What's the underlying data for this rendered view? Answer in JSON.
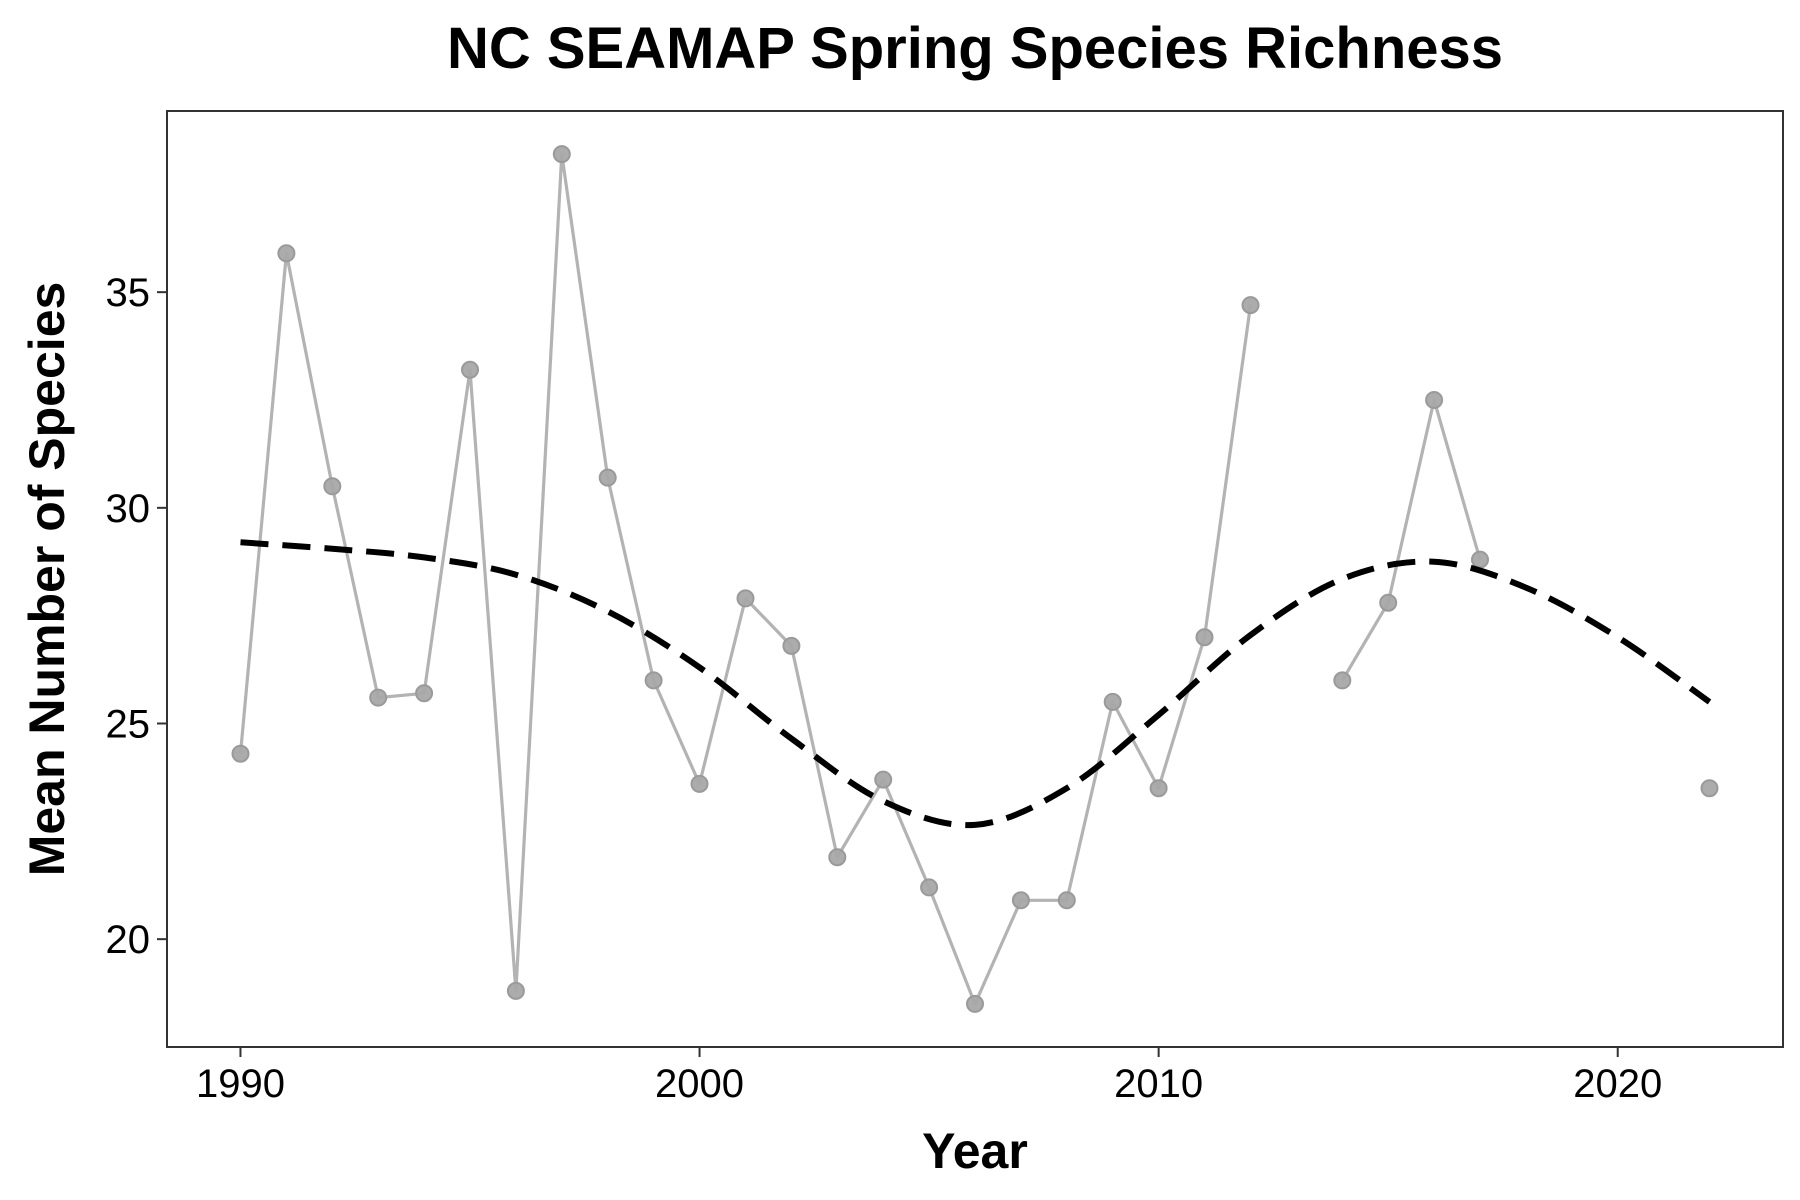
{
  "chart_data": {
    "type": "line",
    "title": "NC SEAMAP Spring Species Richness",
    "xlabel": "Year",
    "ylabel": "Mean Number of Species",
    "xlim": [
      1988.4,
      2023.6
    ],
    "ylim": [
      17.5,
      39.2
    ],
    "x_ticks": [
      1990,
      2000,
      2010,
      2020
    ],
    "y_ticks": [
      20,
      25,
      30,
      35
    ],
    "grid": false,
    "legend": "none",
    "colors": {
      "observed": "#b3b3b3",
      "smooth": "#000000",
      "frame": "#333333"
    },
    "series": [
      {
        "style": "line-points",
        "segments": [
          [
            {
              "x": 1990,
              "y": 24.3
            },
            {
              "x": 1991,
              "y": 35.9
            },
            {
              "x": 1992,
              "y": 30.5
            },
            {
              "x": 1993,
              "y": 25.6
            },
            {
              "x": 1994,
              "y": 25.7
            },
            {
              "x": 1995,
              "y": 33.2
            },
            {
              "x": 1996,
              "y": 18.8
            },
            {
              "x": 1997,
              "y": 38.2
            },
            {
              "x": 1998,
              "y": 30.7
            },
            {
              "x": 1999,
              "y": 26.0
            },
            {
              "x": 2000,
              "y": 23.6
            },
            {
              "x": 2001,
              "y": 27.9
            },
            {
              "x": 2002,
              "y": 26.8
            },
            {
              "x": 2003,
              "y": 21.9
            },
            {
              "x": 2004,
              "y": 23.7
            },
            {
              "x": 2005,
              "y": 21.2
            },
            {
              "x": 2006,
              "y": 18.5
            },
            {
              "x": 2007,
              "y": 20.9
            },
            {
              "x": 2008,
              "y": 20.9
            },
            {
              "x": 2009,
              "y": 25.5
            },
            {
              "x": 2010,
              "y": 23.5
            },
            {
              "x": 2011,
              "y": 27.0
            },
            {
              "x": 2012,
              "y": 34.7
            }
          ],
          [
            {
              "x": 2014,
              "y": 26.0
            },
            {
              "x": 2015,
              "y": 27.8
            },
            {
              "x": 2016,
              "y": 32.5
            },
            {
              "x": 2017,
              "y": 28.8
            }
          ],
          [
            {
              "x": 2022,
              "y": 23.5
            }
          ]
        ]
      },
      {
        "style": "dashed-smooth",
        "points": [
          {
            "x": 1990,
            "y": 29.2
          },
          {
            "x": 1992,
            "y": 29.05
          },
          {
            "x": 1994,
            "y": 28.85
          },
          {
            "x": 1996,
            "y": 28.45
          },
          {
            "x": 1998,
            "y": 27.6
          },
          {
            "x": 2000,
            "y": 26.3
          },
          {
            "x": 2002,
            "y": 24.65
          },
          {
            "x": 2004,
            "y": 23.2
          },
          {
            "x": 2006,
            "y": 22.65
          },
          {
            "x": 2008,
            "y": 23.5
          },
          {
            "x": 2010,
            "y": 25.2
          },
          {
            "x": 2012,
            "y": 27.05
          },
          {
            "x": 2014,
            "y": 28.35
          },
          {
            "x": 2016,
            "y": 28.75
          },
          {
            "x": 2018,
            "y": 28.15
          },
          {
            "x": 2020,
            "y": 27.0
          },
          {
            "x": 2022,
            "y": 25.5
          }
        ]
      }
    ]
  }
}
